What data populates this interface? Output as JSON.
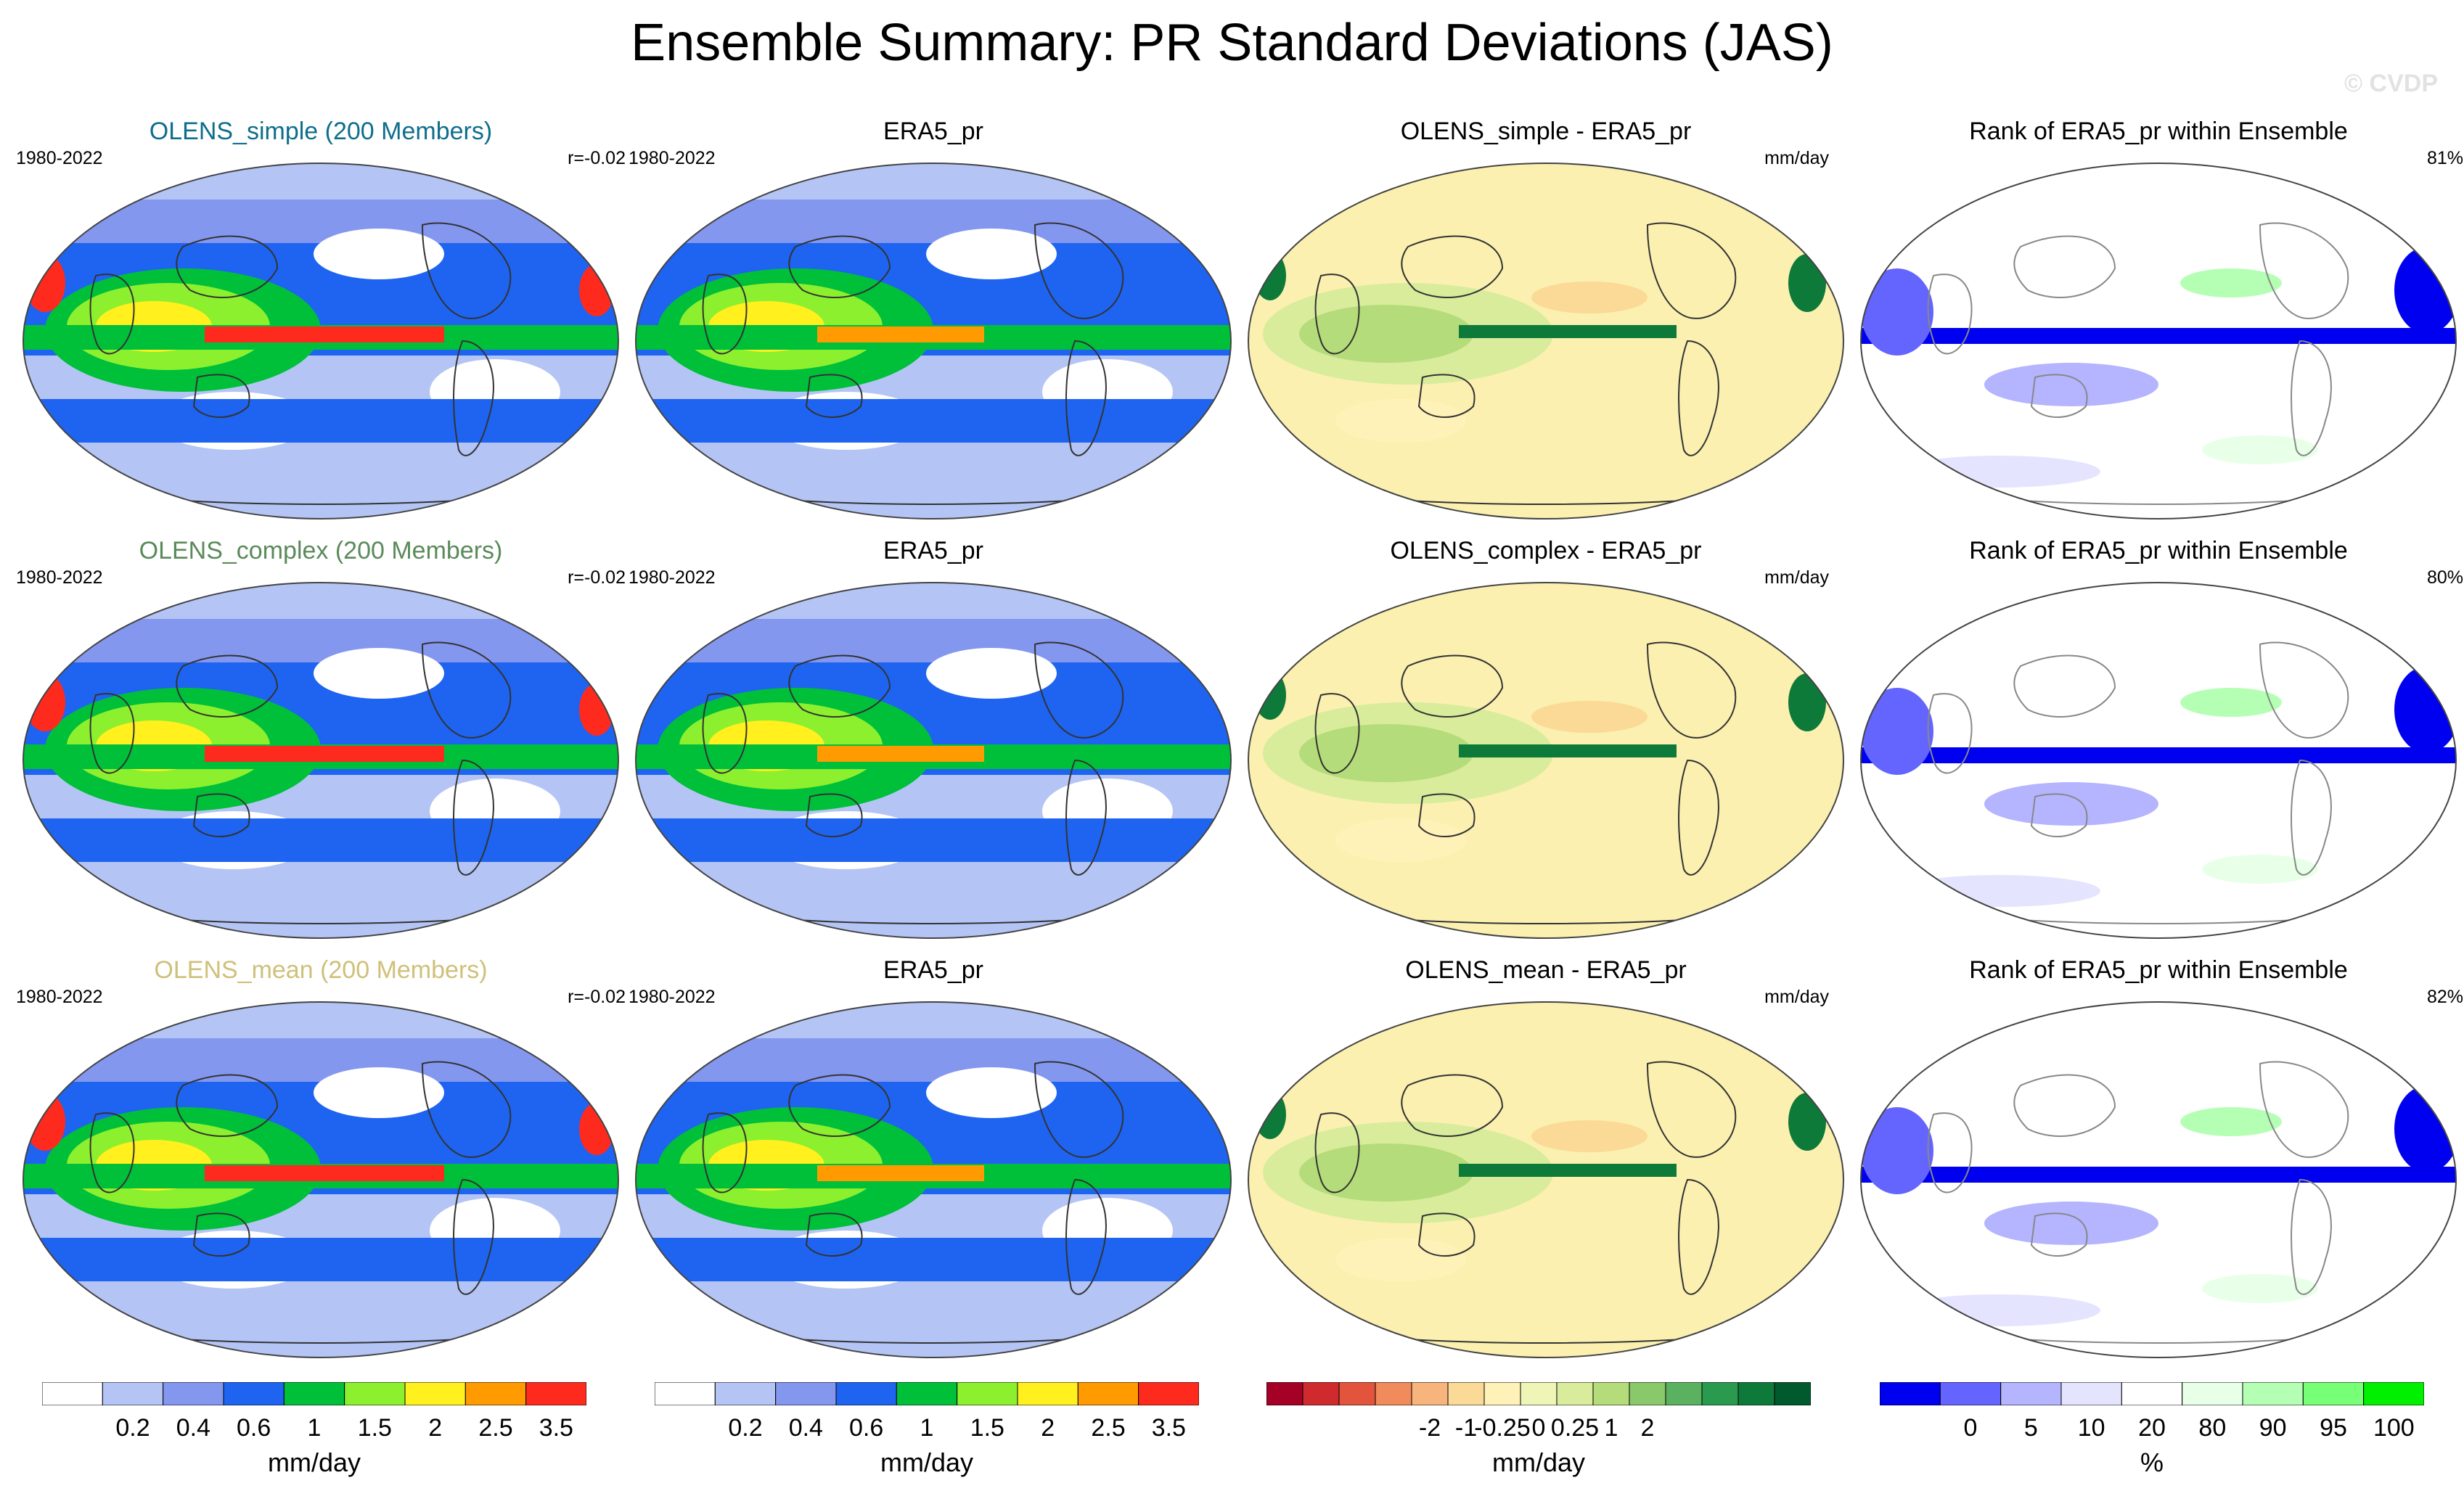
{
  "title": "Ensemble Summary: PR Standard Deviations (JAS)",
  "watermark": "© CVDP",
  "colors": {
    "sd_levels": [
      "#ffffff",
      "#b4c5f5",
      "#8497ef",
      "#1e64f0",
      "#00c03a",
      "#8cf02e",
      "#fff01e",
      "#ff9a00",
      "#ff2a1e"
    ],
    "diff_levels": [
      "#a50026",
      "#cf2a2e",
      "#e2543b",
      "#f28b5c",
      "#f7b47d",
      "#fbd996",
      "#fff2b8",
      "#eef5b7",
      "#d8ec9c",
      "#b5dc7a",
      "#8ac96a",
      "#5ab260",
      "#2a9a4e",
      "#0e7a3a",
      "#005a2e"
    ],
    "rank_levels": [
      "#0000f0",
      "#6464ff",
      "#b4b4ff",
      "#e4e4ff",
      "#ffffff",
      "#e8ffe8",
      "#b4ffb4",
      "#78ff78",
      "#00f000"
    ],
    "ocean_bg_diff": "#fbf0b0"
  },
  "rows": [
    {
      "ensemble": {
        "title": "OLENS_simple (200 Members)",
        "title_color": "#0e6e8c",
        "years": "1980-2022",
        "corr": "r=-0.02"
      },
      "obs": {
        "title": "ERA5_pr",
        "years": "1980-2022"
      },
      "diff": {
        "title": "OLENS_simple - ERA5_pr",
        "units": "mm/day"
      },
      "rank": {
        "title": "Rank of ERA5_pr within Ensemble",
        "pct": "81%"
      }
    },
    {
      "ensemble": {
        "title": "OLENS_complex (200 Members)",
        "title_color": "#5a8a5a",
        "years": "1980-2022",
        "corr": "r=-0.02"
      },
      "obs": {
        "title": "ERA5_pr",
        "years": "1980-2022"
      },
      "diff": {
        "title": "OLENS_complex - ERA5_pr",
        "units": "mm/day"
      },
      "rank": {
        "title": "Rank of ERA5_pr within Ensemble",
        "pct": "80%"
      }
    },
    {
      "ensemble": {
        "title": "OLENS_mean (200 Members)",
        "title_color": "#cfc07a",
        "years": "1980-2022",
        "corr": "r=-0.02"
      },
      "obs": {
        "title": "ERA5_pr",
        "years": "1980-2022"
      },
      "diff": {
        "title": "OLENS_mean - ERA5_pr",
        "units": "mm/day"
      },
      "rank": {
        "title": "Rank of ERA5_pr within Ensemble",
        "pct": "82%"
      }
    }
  ],
  "chart_data": [
    {
      "type": "heatmap",
      "name": "ensemble standard deviation maps",
      "projection": "global robinson-like ellipse, dateline-centered",
      "levels": [
        0.2,
        0.4,
        0.6,
        1,
        1.5,
        2,
        2.5,
        3.5
      ],
      "units": "mm/day"
    },
    {
      "type": "heatmap",
      "name": "observed standard deviation maps",
      "levels": [
        0.2,
        0.4,
        0.6,
        1,
        1.5,
        2,
        2.5,
        3.5
      ],
      "units": "mm/day"
    },
    {
      "type": "heatmap",
      "name": "difference maps",
      "levels": [
        -2,
        -1,
        -0.25,
        0,
        0.25,
        1,
        2
      ],
      "units": "mm/day"
    },
    {
      "type": "heatmap",
      "name": "rank maps",
      "levels": [
        0,
        5,
        10,
        20,
        80,
        90,
        95,
        100
      ],
      "units": "%"
    }
  ],
  "colorbars": [
    {
      "labels": [
        "0.2",
        "0.4",
        "0.6",
        "1",
        "1.5",
        "2",
        "2.5",
        "3.5"
      ],
      "unit": "mm/day"
    },
    {
      "labels": [
        "0.2",
        "0.4",
        "0.6",
        "1",
        "1.5",
        "2",
        "2.5",
        "3.5"
      ],
      "unit": "mm/day"
    },
    {
      "labels": [
        "-2",
        "-1",
        "-0.25",
        "0",
        "0.25",
        "1",
        "2"
      ],
      "unit": "mm/day"
    },
    {
      "labels": [
        "0",
        "5",
        "10",
        "20",
        "80",
        "90",
        "95",
        "100"
      ],
      "unit": "%"
    }
  ]
}
